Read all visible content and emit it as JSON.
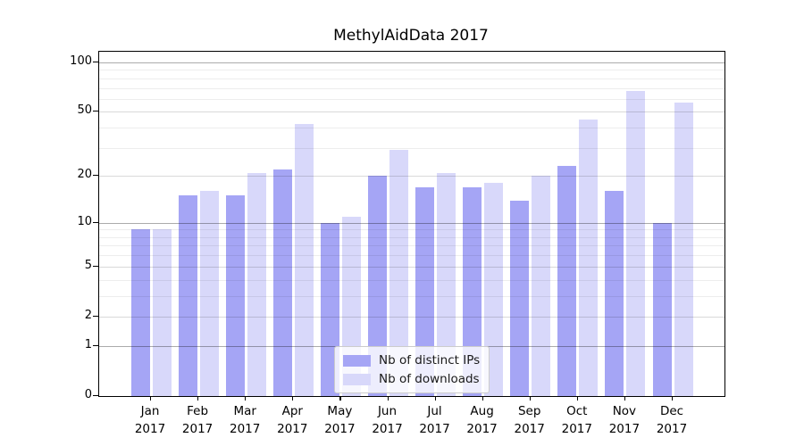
{
  "title": "MethylAidData 2017",
  "chart_data": {
    "type": "bar",
    "title": "MethylAidData 2017",
    "categories": [
      "Jan",
      "Feb",
      "Mar",
      "Apr",
      "May",
      "Jun",
      "Jul",
      "Aug",
      "Sep",
      "Oct",
      "Nov",
      "Dec"
    ],
    "x_year_label": "2017",
    "series": [
      {
        "name": "Nb of distinct IPs",
        "color": "#a5a5f5",
        "values": [
          9,
          15,
          15,
          22,
          10,
          20,
          17,
          17,
          14,
          23,
          16,
          10
        ]
      },
      {
        "name": "Nb of downloads",
        "color": "#d8d8fa",
        "values": [
          9,
          16,
          21,
          42,
          11,
          29,
          21,
          18,
          20,
          45,
          67,
          57
        ]
      }
    ],
    "y_scale": "log10(1+x)",
    "ylim": [
      0,
      116
    ],
    "y_tick_labels": [
      "100",
      "50",
      "20",
      "10",
      "5",
      "2",
      "1",
      "0"
    ],
    "grid_major": [
      1,
      10,
      100
    ],
    "grid_mid": [
      2,
      5,
      20,
      50
    ],
    "grid_minor": [
      3,
      4,
      6,
      7,
      8,
      9,
      30,
      40,
      60,
      70,
      80,
      90
    ],
    "legend_position": "lower center",
    "grid": true
  }
}
